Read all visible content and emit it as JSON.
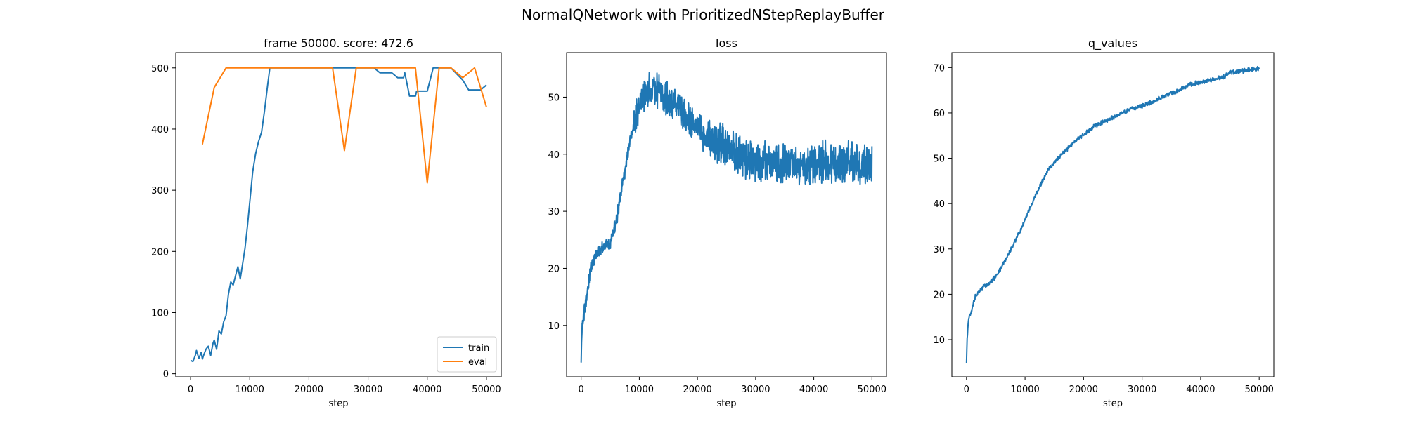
{
  "figure": {
    "suptitle": "NormalQNetwork with PrioritizedNStepReplayBuffer"
  },
  "colors": {
    "train": "#1f77b4",
    "eval": "#ff7f0e",
    "axes": "#000000",
    "background": "#ffffff"
  },
  "chart_data": [
    {
      "id": "score",
      "type": "line",
      "title": "frame 50000. score: 472.6",
      "xlabel": "step",
      "ylabel": "",
      "xlim": [
        -2500,
        52500
      ],
      "ylim": [
        -5,
        525
      ],
      "xticks": [
        0,
        10000,
        20000,
        30000,
        40000,
        50000
      ],
      "yticks": [
        0,
        100,
        200,
        300,
        400,
        500
      ],
      "grid": false,
      "legend": "bottom-right",
      "series": [
        {
          "name": "train",
          "color": "#1f77b4",
          "x": [
            0,
            400,
            800,
            1000,
            1400,
            1800,
            2000,
            2200,
            2600,
            3000,
            3400,
            3800,
            4000,
            4400,
            4800,
            5200,
            5600,
            6000,
            6400,
            6800,
            7200,
            7600,
            8000,
            8400,
            8800,
            9200,
            9600,
            10000,
            10500,
            11000,
            11500,
            12000,
            12500,
            13000,
            13400,
            15000,
            20000,
            24000,
            28000,
            30000,
            31000,
            32000,
            33000,
            34000,
            35000,
            36000,
            36200,
            37000,
            38000,
            38200,
            40000,
            41000,
            42000,
            44000,
            45000,
            46000,
            47000,
            48000,
            49000,
            50000
          ],
          "y": [
            22,
            20,
            30,
            38,
            25,
            35,
            24,
            30,
            40,
            45,
            30,
            50,
            55,
            40,
            70,
            65,
            85,
            95,
            130,
            150,
            145,
            160,
            175,
            155,
            180,
            205,
            240,
            280,
            330,
            360,
            380,
            395,
            430,
            470,
            500,
            500,
            500,
            500,
            500,
            500,
            500,
            492,
            492,
            492,
            484,
            484,
            492,
            454,
            454,
            462,
            462,
            500,
            500,
            500,
            490,
            480,
            464,
            464,
            464,
            472
          ]
        },
        {
          "name": "eval",
          "color": "#ff7f0e",
          "x": [
            2000,
            4000,
            6000,
            8000,
            10000,
            12000,
            14000,
            16000,
            18000,
            20000,
            22000,
            24000,
            26000,
            28000,
            30000,
            32000,
            34000,
            36000,
            38000,
            40000,
            42000,
            44000,
            46000,
            48000,
            50000
          ],
          "y": [
            375,
            468,
            500,
            500,
            500,
            500,
            500,
            500,
            500,
            500,
            500,
            500,
            365,
            500,
            500,
            500,
            500,
            500,
            500,
            312,
            500,
            500,
            484,
            500,
            436
          ]
        }
      ]
    },
    {
      "id": "loss",
      "type": "line",
      "title": "loss",
      "xlabel": "step",
      "ylabel": "",
      "xlim": [
        -2500,
        52500
      ],
      "ylim": [
        1,
        57.8
      ],
      "xticks": [
        0,
        10000,
        20000,
        30000,
        40000,
        50000
      ],
      "yticks": [
        10,
        20,
        30,
        40,
        50
      ],
      "grid": false,
      "series": [
        {
          "name": "",
          "color": "#1f77b4",
          "x": [
            0,
            100,
            250,
            500,
            800,
            1200,
            1600,
            2000,
            2500,
            3000,
            3500,
            4000,
            4500,
            5000,
            5500,
            6000,
            6500,
            7000,
            7500,
            8000,
            8500,
            9000,
            9500,
            10000,
            10500,
            11000,
            11500,
            12000,
            12500,
            13000,
            13500,
            14000,
            15000,
            16000,
            17000,
            18000,
            19000,
            20000,
            21000,
            22000,
            23000,
            24000,
            25000,
            26000,
            27000,
            28000,
            29000,
            30000,
            32000,
            34000,
            36000,
            38000,
            40000,
            42000,
            44000,
            46000,
            48000,
            49500,
            50000
          ],
          "y": [
            3.5,
            8.5,
            10.5,
            12,
            14,
            17,
            19.5,
            21,
            22.5,
            23,
            23.5,
            24,
            24,
            24.5,
            26,
            28,
            31,
            34.5,
            37,
            40,
            42.5,
            45,
            47,
            49,
            50,
            50.5,
            51,
            51.5,
            51.5,
            51,
            51,
            50.5,
            49.5,
            48.5,
            47.5,
            46.5,
            45.5,
            44.5,
            43.5,
            42.5,
            42,
            41.5,
            41,
            40.5,
            40,
            39.5,
            39,
            38.8,
            38.5,
            38.2,
            38,
            38,
            38.3,
            38.5,
            38.5,
            38.3,
            38,
            38,
            38
          ]
        }
      ]
    },
    {
      "id": "q_values",
      "type": "line",
      "title": "q_values",
      "xlabel": "step",
      "ylabel": "",
      "xlim": [
        -2500,
        52500
      ],
      "ylim": [
        1.8,
        73.3
      ],
      "xticks": [
        0,
        10000,
        20000,
        30000,
        40000,
        50000
      ],
      "yticks": [
        10,
        20,
        30,
        40,
        50,
        60,
        70
      ],
      "grid": false,
      "series": [
        {
          "name": "",
          "color": "#1f77b4",
          "x": [
            0,
            100,
            300,
            600,
            1000,
            1500,
            2000,
            3000,
            4000,
            5000,
            6000,
            7000,
            8000,
            9000,
            10000,
            11000,
            12000,
            13000,
            14000,
            15000,
            16000,
            17000,
            18000,
            19000,
            20000,
            22000,
            24000,
            26000,
            28000,
            30000,
            32000,
            34000,
            36000,
            38000,
            40000,
            42000,
            44000,
            45000,
            46000,
            48000,
            50000
          ],
          "y": [
            4.8,
            10,
            14,
            15.5,
            17,
            19.5,
            20.5,
            21.8,
            22.5,
            24,
            26,
            28.5,
            31,
            33.5,
            36.5,
            39.5,
            42.5,
            45,
            47.5,
            49,
            50.5,
            51.8,
            53,
            54.3,
            55.2,
            57.2,
            58.4,
            59.5,
            60.8,
            61.6,
            62.6,
            63.8,
            64.8,
            66.2,
            66.8,
            67.3,
            67.9,
            68.9,
            69,
            69.4,
            69.8
          ]
        }
      ]
    }
  ]
}
